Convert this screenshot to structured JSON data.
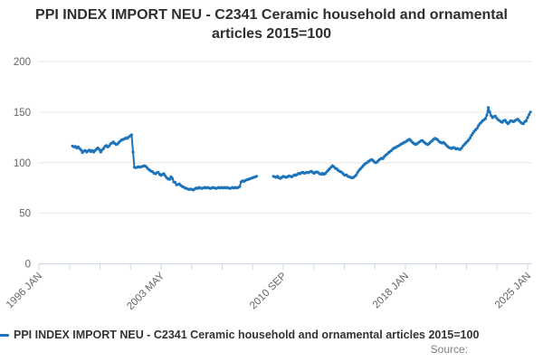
{
  "title": "PPI INDEX IMPORT NEU - C2341 Ceramic household and ornamental articles 2015=100",
  "legend": {
    "label": "PPI INDEX IMPORT NEU - C2341 Ceramic household and ornamental articles 2015=100"
  },
  "source_label": "Source:",
  "colors": {
    "series": "#1d74ba",
    "grid": "#e6e6e6",
    "axis": "#ccd6eb",
    "tick_label": "#666666",
    "title_text": "#2f2f2f",
    "source_text": "#7f7f7f"
  },
  "chart_data": {
    "type": "line",
    "title": "PPI INDEX IMPORT NEU - C2341 Ceramic household and ornamental articles 2015=100",
    "xlabel": "",
    "ylabel": "",
    "ylim": [
      0,
      200
    ],
    "y_ticks": [
      0,
      50,
      100,
      150,
      200
    ],
    "grid": "horizontal",
    "legend_position": "bottom-left",
    "x_axis": {
      "start": "1996 JAN",
      "end": "2025 JAN",
      "tick_count": 17,
      "labeled_ticks": [
        "1996 JAN",
        "2003 MAY",
        "2010 SEP",
        "2018 JAN",
        "2025 JAN"
      ]
    },
    "series": [
      {
        "name": "PPI INDEX IMPORT NEU - C2341 Ceramic household and ornamental articles 2015=100",
        "color": "#1d74ba",
        "frequency": "monthly",
        "first_point": "1998 JAN",
        "gap": "Jan 2009 - Nov 2009 (no data)",
        "values_by_year": {
          "1998": [
            116.5,
            115.5,
            116,
            114.5,
            115.5,
            114,
            112.5,
            110,
            111.5,
            112,
            110.5,
            111.5
          ],
          "1999": [
            112.5,
            111,
            112,
            110.5,
            112,
            113.5,
            114.5,
            113,
            110.5,
            112.5,
            114,
            116
          ],
          "2000": [
            117,
            115.5,
            116.5,
            118.5,
            119.5,
            120.5,
            119,
            118,
            118.5,
            120,
            121.5,
            122.5
          ],
          "2001": [
            123,
            123.5,
            124.5,
            124,
            125.5,
            126.5,
            127.5,
            110.5,
            95.5,
            95,
            95.5,
            96
          ],
          "2002": [
            95.5,
            96,
            96.5,
            97,
            96.5,
            95,
            93.5,
            92.5,
            91.5,
            91,
            89.5,
            89
          ],
          "2003": [
            90,
            90.5,
            88.5,
            87.5,
            88.5,
            89,
            87,
            85,
            84,
            83.5,
            86,
            84.5
          ],
          "2004": [
            81,
            80.5,
            78,
            78.5,
            79,
            77.5,
            76.5,
            76,
            75,
            74.5,
            74,
            73.5
          ],
          "2005": [
            74,
            73.5,
            73,
            74,
            75,
            74.5,
            75.5,
            75,
            74.5,
            75,
            75.5,
            75
          ],
          "2006": [
            75.5,
            75,
            74.5,
            75,
            75.5,
            75,
            74.5,
            75,
            75.5,
            75,
            75.5,
            75
          ],
          "2007": [
            75.5,
            75,
            75.5,
            75,
            74.5,
            75,
            75.5,
            75,
            75.5,
            75,
            75.5,
            76.5
          ],
          "2008": [
            81,
            82,
            81.5,
            82.5,
            83,
            83.5,
            84,
            84.5,
            85,
            85.5,
            86,
            86.5
          ],
          "2009": [
            null,
            null,
            null,
            null,
            null,
            null,
            null,
            null,
            null,
            null,
            null,
            86.5
          ],
          "2010": [
            86,
            85.5,
            86.5,
            85,
            84.5,
            85.5,
            86.5,
            86,
            85.5,
            86,
            87,
            86.5
          ],
          "2011": [
            86,
            87,
            88,
            87.5,
            88.5,
            89.5,
            89,
            90,
            90.5,
            89.5,
            90,
            90.5
          ],
          "2012": [
            90,
            91,
            91.5,
            90.5,
            89.5,
            90.5,
            91,
            90,
            89,
            88.5,
            89.5,
            88.5
          ],
          "2013": [
            89.5,
            91,
            92.5,
            94,
            95.5,
            97,
            96,
            94.5,
            94,
            92.5,
            91.5,
            91
          ],
          "2014": [
            90,
            88.5,
            87.5,
            88,
            86.5,
            86,
            85.5,
            85,
            85.5,
            86.5,
            88,
            90.5
          ],
          "2015": [
            92.5,
            94,
            95.5,
            97,
            98.5,
            99.5,
            100.5,
            101.5,
            102.5,
            103,
            102,
            100.5
          ],
          "2016": [
            100,
            101,
            102.5,
            103.5,
            104.5,
            104,
            106,
            107.5,
            108.5,
            110,
            111,
            112
          ],
          "2017": [
            113.5,
            114.5,
            115,
            116,
            116.5,
            117.5,
            118.5,
            119,
            120,
            120.5,
            121.5,
            122.5
          ],
          "2018": [
            123,
            121.5,
            120,
            119,
            118,
            118.5,
            119.5,
            120.5,
            121.5,
            122,
            120.5,
            119.5
          ],
          "2019": [
            118.5,
            118,
            119,
            120.5,
            121.5,
            123,
            124,
            123.5,
            122.5,
            121,
            120,
            119.5
          ],
          "2020": [
            120,
            119,
            117.5,
            116,
            115,
            114.5,
            114,
            115,
            114.5,
            113.5,
            114,
            113.5
          ],
          "2021": [
            113,
            114.5,
            116.5,
            118,
            119.5,
            121,
            122.5,
            124.5,
            127,
            129,
            131,
            132.5
          ],
          "2022": [
            134,
            136.5,
            138.5,
            140,
            141.5,
            142.5,
            143.5,
            147,
            154.5,
            150,
            146.5,
            144.5
          ],
          "2023": [
            145.5,
            146,
            144,
            142.5,
            141.5,
            140.5,
            140,
            141.5,
            142,
            140,
            138.5,
            140
          ],
          "2024": [
            141.5,
            141,
            140.5,
            141.5,
            142.5,
            143,
            141.5,
            140,
            139,
            138.5,
            140.5,
            141.5
          ],
          "2025": [
            144.5,
            147.5,
            150
          ]
        }
      }
    ]
  }
}
